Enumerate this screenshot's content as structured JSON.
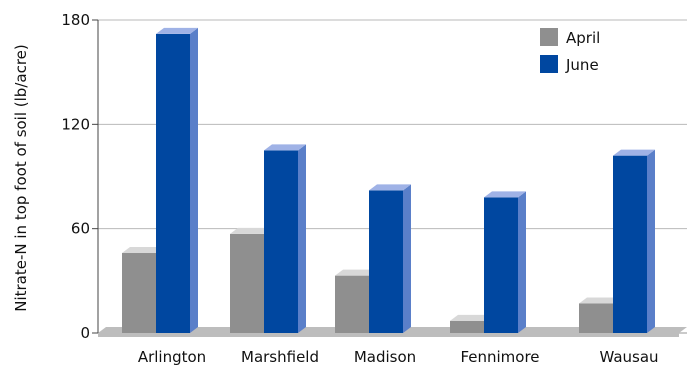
{
  "chart_data": {
    "type": "bar",
    "categories": [
      "Arlington",
      "Marshfield",
      "Madison",
      "Fennimore",
      "Wausau"
    ],
    "series": [
      {
        "name": "April",
        "values": [
          46,
          57,
          33,
          7,
          17
        ],
        "color": "#8f8f8f"
      },
      {
        "name": "June",
        "values": [
          172,
          105,
          82,
          78,
          102
        ],
        "color": "#0047a0"
      }
    ],
    "title": "",
    "xlabel": "",
    "ylabel": "Nitrate-N in top foot of soil (lb/acre)",
    "ylim": [
      0,
      180
    ],
    "yticks": [
      0,
      60,
      120,
      180
    ],
    "grid": true,
    "legend": "top-right",
    "style": "3d-bars",
    "colors": {
      "grid": "#b9b9b9",
      "floor": "#bdbdbd",
      "april_side": "#6f6f6f",
      "april_top": "#d8d8d8",
      "june_side": "#5a7fc9",
      "june_top": "#9fb2e6"
    }
  }
}
